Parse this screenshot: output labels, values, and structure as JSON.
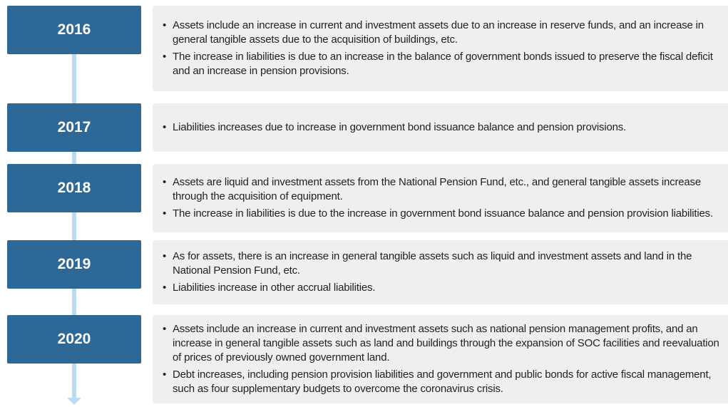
{
  "timeline": [
    {
      "year": "2016",
      "bullets": [
        "Assets include an increase in current and investment assets due to an increase in reserve funds, and an increase in general tangible assets due to the acquisition of buildings, etc.",
        "The increase in liabilities is due to an increase in the balance of government bonds issued to preserve the fiscal deficit and an increase in pension provisions."
      ]
    },
    {
      "year": "2017",
      "bullets": [
        "Liabilities increases due to increase in government bond issuance balance and pension provisions."
      ]
    },
    {
      "year": "2018",
      "bullets": [
        "Assets are liquid and investment assets from the National Pension Fund, etc., and general tangible assets increase through the acquisition of equipment.",
        "The increase in liabilities is due to the increase in government bond issuance balance and pension provision liabilities."
      ]
    },
    {
      "year": "2019",
      "bullets": [
        "As for assets, there is an increase in general tangible assets such as liquid and investment assets and land in the National Pension Fund, etc.",
        "Liabilities increase in other accrual liabilities."
      ]
    },
    {
      "year": "2020",
      "bullets": [
        "Assets include an increase in current and investment assets such as national pension management profits, and an increase in general tangible assets such as land and buildings through the expansion of SOC facilities and reevaluation of prices of previously owned government land.",
        "Debt increases, including pension provision liabilities and government and public bonds for active fiscal management, such as four supplementary budgets to overcome the coronavirus crisis."
      ]
    }
  ]
}
